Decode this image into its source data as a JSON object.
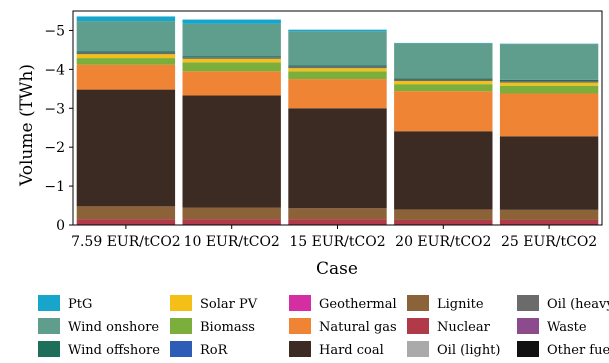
{
  "chart_data": {
    "type": "bar",
    "stacked": true,
    "xlabel": "Case",
    "ylabel": "Volume (TWh)",
    "ylim": [
      0,
      -5.5
    ],
    "yticks": [
      0,
      -1,
      -2,
      -3,
      -4,
      -5
    ],
    "ytick_labels": [
      "0",
      "−1",
      "−2",
      "−3",
      "−4",
      "−5"
    ],
    "categories": [
      "7.59 EUR/tCO2",
      "10 EUR/tCO2",
      "15 EUR/tCO2",
      "20 EUR/tCO2",
      "25 EUR/tCO2"
    ],
    "grid": false,
    "legend_position": "bottom",
    "series": [
      {
        "name": "Nuclear",
        "color": "#b03a48",
        "values": [
          -0.15,
          -0.15,
          -0.15,
          -0.13,
          -0.13
        ]
      },
      {
        "name": "Lignite",
        "color": "#8c6239",
        "values": [
          -0.33,
          -0.3,
          -0.28,
          -0.27,
          -0.26
        ]
      },
      {
        "name": "Hard coal",
        "color": "#3b2b22",
        "values": [
          -3.0,
          -2.88,
          -2.57,
          -2.01,
          -1.89
        ]
      },
      {
        "name": "Natural gas",
        "color": "#ef8434",
        "values": [
          -0.64,
          -0.62,
          -0.75,
          -1.03,
          -1.1
        ]
      },
      {
        "name": "Biomass",
        "color": "#7cae3c",
        "values": [
          -0.17,
          -0.23,
          -0.2,
          -0.18,
          -0.2
        ]
      },
      {
        "name": "Solar PV",
        "color": "#f4c018",
        "values": [
          -0.1,
          -0.09,
          -0.08,
          -0.08,
          -0.08
        ]
      },
      {
        "name": "Oil (heavy)",
        "color": "#6b6b6b",
        "values": [
          -0.04,
          -0.04,
          -0.04,
          -0.04,
          -0.04
        ]
      },
      {
        "name": "Wind offshore",
        "color": "#1f6e5a",
        "values": [
          -0.03,
          -0.03,
          -0.03,
          -0.03,
          -0.03
        ]
      },
      {
        "name": "Wind onshore",
        "color": "#5f9e8c",
        "values": [
          -0.78,
          -0.83,
          -0.88,
          -0.9,
          -0.92
        ]
      },
      {
        "name": "PtG",
        "color": "#18a5cc",
        "values": [
          -0.12,
          -0.11,
          -0.04,
          -0.01,
          -0.01
        ]
      }
    ],
    "legend": [
      {
        "name": "PtG",
        "color": "#18a5cc"
      },
      {
        "name": "Wind onshore",
        "color": "#5f9e8c"
      },
      {
        "name": "Wind offshore",
        "color": "#1f6e5a"
      },
      {
        "name": "Solar PV",
        "color": "#f4c018"
      },
      {
        "name": "Biomass",
        "color": "#7cae3c"
      },
      {
        "name": "RoR",
        "color": "#2e5db8"
      },
      {
        "name": "Geothermal",
        "color": "#d42ea2"
      },
      {
        "name": "Natural gas",
        "color": "#ef8434"
      },
      {
        "name": "Hard coal",
        "color": "#3b2b22"
      },
      {
        "name": "Lignite",
        "color": "#8c6239"
      },
      {
        "name": "Nuclear",
        "color": "#b03a48"
      },
      {
        "name": "Oil (light)",
        "color": "#aaaaaa"
      },
      {
        "name": "Oil (heavy)",
        "color": "#6b6b6b"
      },
      {
        "name": "Waste",
        "color": "#8b4b8d"
      },
      {
        "name": "Other fuels",
        "color": "#111111"
      }
    ]
  }
}
